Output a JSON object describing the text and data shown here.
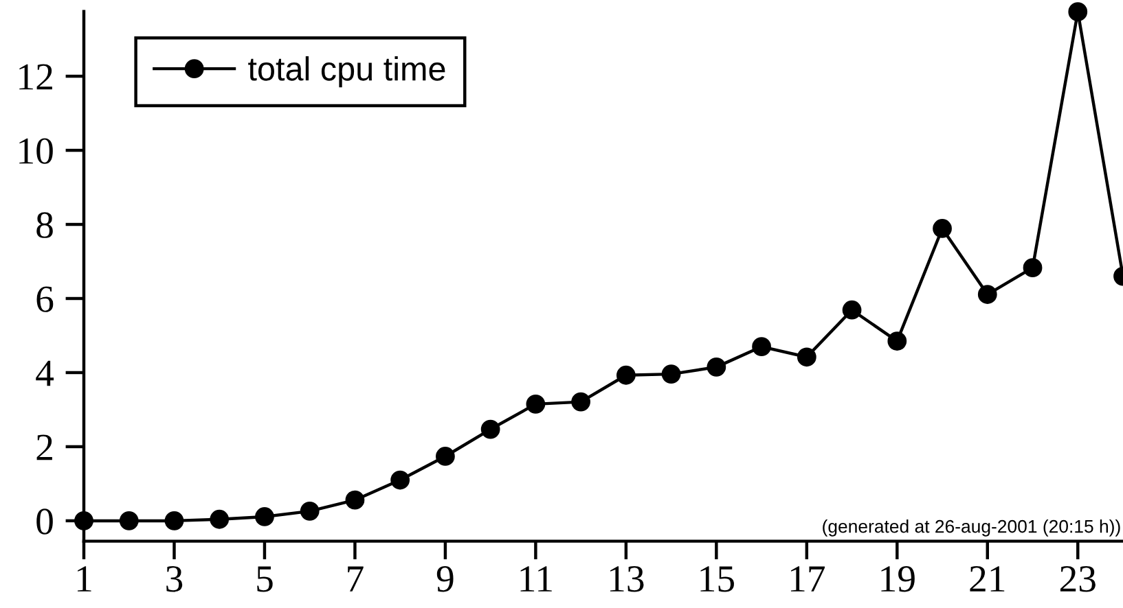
{
  "chart_data": {
    "type": "line",
    "x": [
      1,
      2,
      3,
      4,
      5,
      6,
      7,
      8,
      9,
      10,
      11,
      12,
      13,
      14,
      15,
      16,
      17,
      18,
      19,
      20,
      21,
      22,
      23,
      24
    ],
    "series": [
      {
        "name": "total cpu time",
        "color": "#000000",
        "values": [
          0,
          0,
          0,
          0.04,
          0.11,
          0.26,
          0.56,
          1.1,
          1.74,
          2.47,
          3.15,
          3.21,
          3.93,
          3.96,
          4.15,
          4.7,
          4.42,
          5.69,
          4.85,
          7.89,
          6.11,
          6.83,
          13.74,
          6.6
        ]
      }
    ],
    "xlim": [
      1,
      24
    ],
    "xticks": [
      1,
      3,
      5,
      7,
      9,
      11,
      13,
      15,
      17,
      19,
      21,
      23
    ],
    "ylim": [
      -0.55,
      13.75
    ],
    "yticks": [
      0,
      2,
      4,
      6,
      8,
      10,
      12
    ],
    "legend": "top left",
    "marker": "circle",
    "line_style": "solid",
    "annotations": [
      "(generated at 26-aug-2001 (20:15 h))"
    ]
  }
}
